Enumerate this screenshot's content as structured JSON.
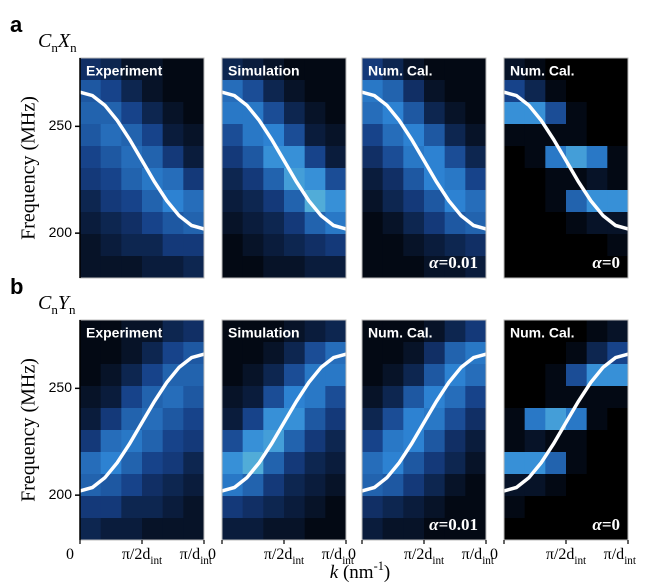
{
  "figure": {
    "panels": [
      {
        "letter": "a",
        "label": [
          {
            "t": "C",
            "italic": true
          },
          {
            "t": "n",
            "sub": true
          },
          {
            "t": "X",
            "italic": true
          },
          {
            "t": "n",
            "sub": true
          }
        ]
      },
      {
        "letter": "b",
        "label": [
          {
            "t": "C",
            "italic": true
          },
          {
            "t": "n",
            "sub": true
          },
          {
            "t": "Y",
            "italic": true
          },
          {
            "t": "n",
            "sub": true
          }
        ]
      }
    ],
    "xlabel": [
      {
        "t": "k",
        "italic": true
      },
      {
        "t": " (nm"
      },
      {
        "t": "-1",
        "sup": true
      },
      {
        "t": ")"
      }
    ]
  },
  "chart_data": [
    {
      "type": "heatmap",
      "title": "Experiment",
      "ylabel": "Frequency (MHz)",
      "xlim": [
        0,
        1
      ],
      "ylim": [
        179,
        282
      ],
      "yticks": [
        200,
        250
      ],
      "colorscale": [
        "#000000",
        "#163f86",
        "#2e86d6",
        "#86e6dc"
      ],
      "z": [
        [
          0.25,
          0.2,
          0.1,
          0.1,
          0.05,
          0.05
        ],
        [
          0.45,
          0.35,
          0.2,
          0.1,
          0.05,
          0.05
        ],
        [
          0.5,
          0.5,
          0.35,
          0.2,
          0.1,
          0.05
        ],
        [
          0.45,
          0.55,
          0.5,
          0.35,
          0.15,
          0.1
        ],
        [
          0.35,
          0.45,
          0.55,
          0.5,
          0.3,
          0.15
        ],
        [
          0.3,
          0.35,
          0.5,
          0.6,
          0.55,
          0.3
        ],
        [
          0.2,
          0.3,
          0.35,
          0.5,
          0.65,
          0.55
        ],
        [
          0.15,
          0.2,
          0.25,
          0.35,
          0.45,
          0.5
        ],
        [
          0.1,
          0.15,
          0.2,
          0.2,
          0.3,
          0.3
        ],
        [
          0.1,
          0.1,
          0.1,
          0.15,
          0.15,
          0.2
        ]
      ],
      "curve": {
        "color": "#ffffff",
        "x": [
          0,
          0.1,
          0.2,
          0.3,
          0.4,
          0.5,
          0.6,
          0.7,
          0.8,
          0.9,
          1
        ],
        "values": [
          266,
          264.4,
          259.9,
          252.8,
          243.9,
          234,
          224.1,
          215.2,
          208.1,
          203.6,
          202
        ]
      }
    },
    {
      "type": "heatmap",
      "title": "Simulation",
      "xlim": [
        0,
        1
      ],
      "ylim": [
        179,
        282
      ],
      "colorscale": [
        "#000000",
        "#163f86",
        "#2e86d6",
        "#86e6dc"
      ],
      "z": [
        [
          0.2,
          0.15,
          0.1,
          0.05,
          0.05,
          0.05
        ],
        [
          0.55,
          0.4,
          0.2,
          0.1,
          0.05,
          0.05
        ],
        [
          0.6,
          0.6,
          0.4,
          0.2,
          0.1,
          0.05
        ],
        [
          0.4,
          0.6,
          0.65,
          0.4,
          0.15,
          0.1
        ],
        [
          0.3,
          0.45,
          0.7,
          0.7,
          0.35,
          0.15
        ],
        [
          0.2,
          0.3,
          0.5,
          0.75,
          0.7,
          0.4
        ],
        [
          0.15,
          0.2,
          0.3,
          0.5,
          0.8,
          0.7
        ],
        [
          0.1,
          0.15,
          0.2,
          0.3,
          0.5,
          0.6
        ],
        [
          0.05,
          0.1,
          0.15,
          0.2,
          0.25,
          0.3
        ],
        [
          0.05,
          0.05,
          0.1,
          0.1,
          0.15,
          0.15
        ]
      ],
      "curve": {
        "color": "#ffffff",
        "x": [
          0,
          0.1,
          0.2,
          0.3,
          0.4,
          0.5,
          0.6,
          0.7,
          0.8,
          0.9,
          1
        ],
        "values": [
          266,
          264.4,
          259.9,
          252.8,
          243.9,
          234,
          224.1,
          215.2,
          208.1,
          203.6,
          202
        ]
      }
    },
    {
      "type": "heatmap",
      "title": "Num. Cal.",
      "annotation": [
        {
          "t": "α",
          "italic": true
        },
        {
          "t": "=0.01"
        }
      ],
      "xlim": [
        0,
        1
      ],
      "ylim": [
        179,
        282
      ],
      "colorscale": [
        "#000000",
        "#163f86",
        "#2e86d6",
        "#86e6dc"
      ],
      "z": [
        [
          0.3,
          0.2,
          0.1,
          0.05,
          0.05,
          0.05
        ],
        [
          0.6,
          0.5,
          0.25,
          0.1,
          0.05,
          0.05
        ],
        [
          0.55,
          0.65,
          0.45,
          0.2,
          0.1,
          0.05
        ],
        [
          0.35,
          0.55,
          0.65,
          0.45,
          0.2,
          0.1
        ],
        [
          0.25,
          0.4,
          0.6,
          0.65,
          0.4,
          0.2
        ],
        [
          0.15,
          0.25,
          0.45,
          0.65,
          0.6,
          0.35
        ],
        [
          0.1,
          0.2,
          0.3,
          0.45,
          0.65,
          0.55
        ],
        [
          0.05,
          0.1,
          0.2,
          0.3,
          0.45,
          0.5
        ],
        [
          0.05,
          0.05,
          0.1,
          0.15,
          0.2,
          0.25
        ],
        [
          0.05,
          0.05,
          0.05,
          0.1,
          0.1,
          0.15
        ]
      ],
      "curve": {
        "color": "#ffffff",
        "x": [
          0,
          0.1,
          0.2,
          0.3,
          0.4,
          0.5,
          0.6,
          0.7,
          0.8,
          0.9,
          1
        ],
        "values": [
          266,
          264.4,
          259.9,
          252.8,
          243.9,
          234,
          224.1,
          215.2,
          208.1,
          203.6,
          202
        ]
      }
    },
    {
      "type": "heatmap",
      "title": "Num. Cal.",
      "annotation": [
        {
          "t": "α",
          "italic": true
        },
        {
          "t": "=0"
        }
      ],
      "xlim": [
        0,
        1
      ],
      "ylim": [
        179,
        282
      ],
      "colorscale": [
        "#000000",
        "#163f86",
        "#2e86d6",
        "#86e6dc"
      ],
      "z": [
        [
          0.1,
          0.05,
          0,
          0,
          0,
          0
        ],
        [
          0.35,
          0.2,
          0.05,
          0,
          0,
          0
        ],
        [
          0.7,
          0.7,
          0.4,
          0.05,
          0,
          0
        ],
        [
          0.05,
          0.05,
          0.05,
          0.05,
          0,
          0
        ],
        [
          0,
          0.05,
          0.6,
          0.75,
          0.6,
          0.05
        ],
        [
          0,
          0,
          0.05,
          0.05,
          0.1,
          0.05
        ],
        [
          0,
          0,
          0.05,
          0.5,
          0.7,
          0.7
        ],
        [
          0,
          0,
          0,
          0.05,
          0.1,
          0.1
        ],
        [
          0,
          0,
          0,
          0,
          0,
          0.05
        ],
        [
          0,
          0,
          0,
          0,
          0,
          0
        ]
      ],
      "curve": {
        "color": "#ffffff",
        "x": [
          0,
          0.1,
          0.2,
          0.3,
          0.4,
          0.5,
          0.6,
          0.7,
          0.8,
          0.9,
          1
        ],
        "values": [
          266,
          264.4,
          259.9,
          252.8,
          243.9,
          234,
          224.1,
          215.2,
          208.1,
          203.6,
          202
        ]
      }
    },
    {
      "type": "heatmap",
      "title": "Experiment",
      "ylabel": "Frequency (MHz)",
      "xlim": [
        0,
        1
      ],
      "ylim": [
        179,
        282
      ],
      "yticks": [
        200,
        250
      ],
      "xticks": [
        0,
        {
          "value": 0.5,
          "label": "π/2d",
          "sub": "int"
        },
        {
          "value": 1,
          "label": "π/d",
          "sub": "int"
        }
      ],
      "colorscale": [
        "#000000",
        "#163f86",
        "#2e86d6",
        "#86e6dc"
      ],
      "z": [
        [
          0.05,
          0.05,
          0.1,
          0.1,
          0.2,
          0.25
        ],
        [
          0.05,
          0.05,
          0.1,
          0.2,
          0.35,
          0.45
        ],
        [
          0.05,
          0.1,
          0.2,
          0.35,
          0.5,
          0.5
        ],
        [
          0.1,
          0.15,
          0.35,
          0.5,
          0.55,
          0.45
        ],
        [
          0.15,
          0.3,
          0.5,
          0.55,
          0.45,
          0.35
        ],
        [
          0.3,
          0.55,
          0.6,
          0.5,
          0.35,
          0.3
        ],
        [
          0.55,
          0.65,
          0.5,
          0.35,
          0.3,
          0.2
        ],
        [
          0.5,
          0.45,
          0.35,
          0.25,
          0.2,
          0.15
        ],
        [
          0.3,
          0.3,
          0.2,
          0.2,
          0.15,
          0.1
        ],
        [
          0.2,
          0.15,
          0.15,
          0.1,
          0.1,
          0.1
        ]
      ],
      "curve": {
        "color": "#ffffff",
        "x": [
          0,
          0.1,
          0.2,
          0.3,
          0.4,
          0.5,
          0.6,
          0.7,
          0.8,
          0.9,
          1
        ],
        "values": [
          202,
          203.6,
          208.1,
          215.2,
          224.1,
          234,
          243.9,
          252.8,
          259.9,
          264.4,
          266
        ]
      }
    },
    {
      "type": "heatmap",
      "title": "Simulation",
      "xlim": [
        0,
        1
      ],
      "ylim": [
        179,
        282
      ],
      "xticks": [
        0,
        {
          "value": 0.5,
          "label": "π/2d",
          "sub": "int"
        },
        {
          "value": 1,
          "label": "π/d",
          "sub": "int"
        }
      ],
      "colorscale": [
        "#000000",
        "#163f86",
        "#2e86d6",
        "#86e6dc"
      ],
      "z": [
        [
          0.05,
          0.05,
          0.05,
          0.1,
          0.15,
          0.2
        ],
        [
          0.05,
          0.05,
          0.1,
          0.2,
          0.4,
          0.55
        ],
        [
          0.05,
          0.1,
          0.2,
          0.4,
          0.6,
          0.6
        ],
        [
          0.1,
          0.15,
          0.4,
          0.65,
          0.6,
          0.4
        ],
        [
          0.15,
          0.35,
          0.7,
          0.7,
          0.45,
          0.3
        ],
        [
          0.4,
          0.7,
          0.75,
          0.5,
          0.3,
          0.2
        ],
        [
          0.7,
          0.8,
          0.5,
          0.3,
          0.2,
          0.15
        ],
        [
          0.6,
          0.5,
          0.3,
          0.2,
          0.15,
          0.1
        ],
        [
          0.3,
          0.25,
          0.2,
          0.15,
          0.1,
          0.05
        ],
        [
          0.15,
          0.15,
          0.1,
          0.1,
          0.05,
          0.05
        ]
      ],
      "curve": {
        "color": "#ffffff",
        "x": [
          0,
          0.1,
          0.2,
          0.3,
          0.4,
          0.5,
          0.6,
          0.7,
          0.8,
          0.9,
          1
        ],
        "values": [
          202,
          203.6,
          208.1,
          215.2,
          224.1,
          234,
          243.9,
          252.8,
          259.9,
          264.4,
          266
        ]
      }
    },
    {
      "type": "heatmap",
      "title": "Num. Cal.",
      "annotation": [
        {
          "t": "α",
          "italic": true
        },
        {
          "t": "=0.01"
        }
      ],
      "xlim": [
        0,
        1
      ],
      "ylim": [
        179,
        282
      ],
      "xticks": [
        0,
        {
          "value": 0.5,
          "label": "π/2d",
          "sub": "int"
        },
        {
          "value": 1,
          "label": "π/d",
          "sub": "int"
        }
      ],
      "colorscale": [
        "#000000",
        "#163f86",
        "#2e86d6",
        "#86e6dc"
      ],
      "z": [
        [
          0.05,
          0.05,
          0.05,
          0.1,
          0.2,
          0.3
        ],
        [
          0.05,
          0.05,
          0.1,
          0.25,
          0.5,
          0.6
        ],
        [
          0.05,
          0.1,
          0.2,
          0.45,
          0.65,
          0.55
        ],
        [
          0.1,
          0.2,
          0.45,
          0.65,
          0.55,
          0.35
        ],
        [
          0.2,
          0.4,
          0.65,
          0.6,
          0.4,
          0.25
        ],
        [
          0.35,
          0.6,
          0.65,
          0.45,
          0.25,
          0.15
        ],
        [
          0.55,
          0.65,
          0.45,
          0.3,
          0.2,
          0.1
        ],
        [
          0.5,
          0.45,
          0.3,
          0.2,
          0.1,
          0.05
        ],
        [
          0.25,
          0.2,
          0.15,
          0.1,
          0.05,
          0.05
        ],
        [
          0.15,
          0.1,
          0.1,
          0.05,
          0.05,
          0.05
        ]
      ],
      "curve": {
        "color": "#ffffff",
        "x": [
          0,
          0.1,
          0.2,
          0.3,
          0.4,
          0.5,
          0.6,
          0.7,
          0.8,
          0.9,
          1
        ],
        "values": [
          202,
          203.6,
          208.1,
          215.2,
          224.1,
          234,
          243.9,
          252.8,
          259.9,
          264.4,
          266
        ]
      }
    },
    {
      "type": "heatmap",
      "title": "Num. Cal.",
      "annotation": [
        {
          "t": "α",
          "italic": true
        },
        {
          "t": "=0"
        }
      ],
      "xlim": [
        0,
        1
      ],
      "ylim": [
        179,
        282
      ],
      "xticks": [
        0,
        {
          "value": 0.5,
          "label": "π/2d",
          "sub": "int"
        },
        {
          "value": 1,
          "label": "π/d",
          "sub": "int"
        }
      ],
      "colorscale": [
        "#000000",
        "#163f86",
        "#2e86d6",
        "#86e6dc"
      ],
      "z": [
        [
          0,
          0,
          0,
          0,
          0.05,
          0.1
        ],
        [
          0,
          0,
          0,
          0.05,
          0.2,
          0.35
        ],
        [
          0,
          0,
          0.05,
          0.4,
          0.7,
          0.7
        ],
        [
          0,
          0,
          0.05,
          0.05,
          0.05,
          0.05
        ],
        [
          0.05,
          0.6,
          0.75,
          0.6,
          0.05,
          0
        ],
        [
          0.05,
          0.1,
          0.05,
          0.05,
          0,
          0
        ],
        [
          0.7,
          0.7,
          0.5,
          0.05,
          0,
          0
        ],
        [
          0.1,
          0.1,
          0.05,
          0,
          0,
          0
        ],
        [
          0.05,
          0,
          0,
          0,
          0,
          0
        ],
        [
          0,
          0,
          0,
          0,
          0,
          0
        ]
      ],
      "curve": {
        "color": "#ffffff",
        "x": [
          0,
          0.1,
          0.2,
          0.3,
          0.4,
          0.5,
          0.6,
          0.7,
          0.8,
          0.9,
          1
        ],
        "values": [
          202,
          203.6,
          208.1,
          215.2,
          224.1,
          234,
          243.9,
          252.8,
          259.9,
          264.4,
          266
        ]
      }
    }
  ]
}
